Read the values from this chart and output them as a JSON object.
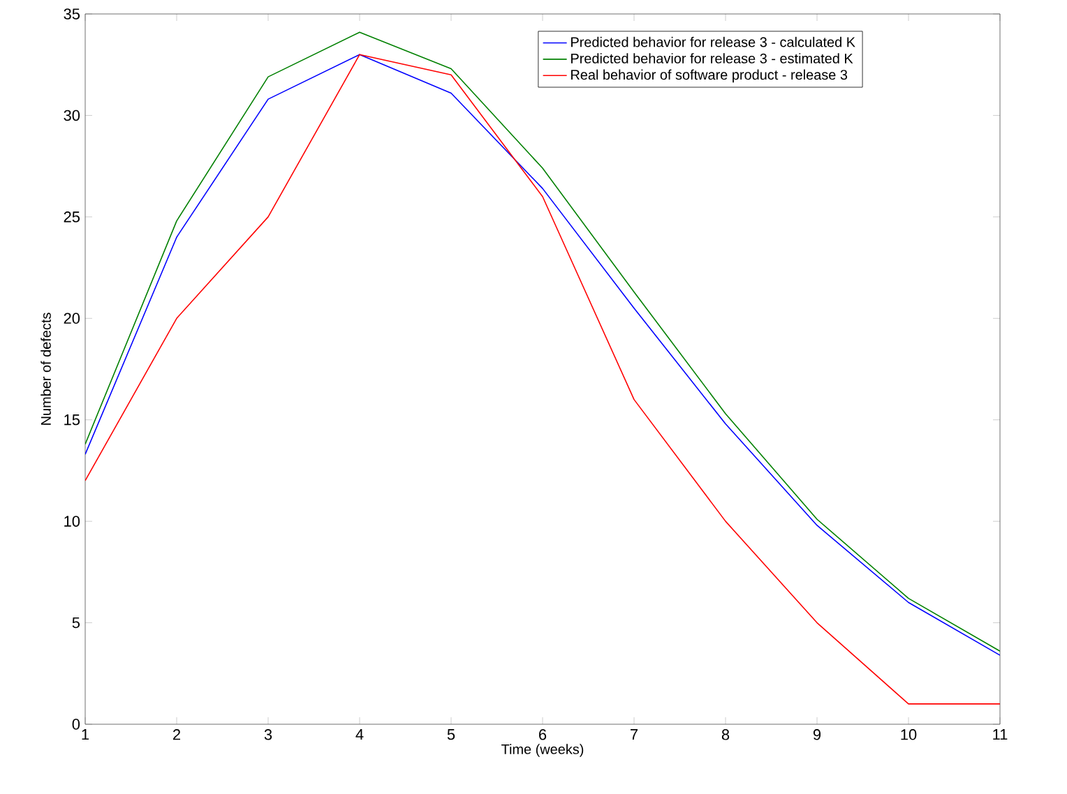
{
  "chart_data": {
    "type": "line",
    "xlabel": "Time (weeks)",
    "ylabel": "Number of defects",
    "x": [
      1,
      2,
      3,
      4,
      5,
      6,
      7,
      8,
      9,
      10,
      11
    ],
    "series": [
      {
        "name": "Predicted behavior for release 3 - calculated K",
        "color": "#0000ff",
        "values": [
          13.3,
          24,
          30.8,
          33,
          31.1,
          26.4,
          20.5,
          14.8,
          9.8,
          6,
          3.4
        ]
      },
      {
        "name": "Predicted behavior for release 3 - estimated K",
        "color": "#008000",
        "values": [
          13.8,
          24.8,
          31.9,
          34.1,
          32.3,
          27.4,
          21.3,
          15.3,
          10.1,
          6.2,
          3.6
        ]
      },
      {
        "name": "Real behavior of software product - release 3",
        "color": "#ff0000",
        "values": [
          12,
          20,
          25,
          33,
          32,
          26,
          16,
          10,
          5,
          1,
          1
        ]
      }
    ],
    "xlim": [
      1,
      11
    ],
    "xticks": [
      1,
      2,
      3,
      4,
      5,
      6,
      7,
      8,
      9,
      10,
      11
    ],
    "ylim": [
      0,
      35
    ],
    "yticks": [
      0,
      5,
      10,
      15,
      20,
      25,
      30,
      35
    ],
    "grid": false,
    "legend": "top right",
    "marker": "none",
    "line_style": "solid"
  }
}
